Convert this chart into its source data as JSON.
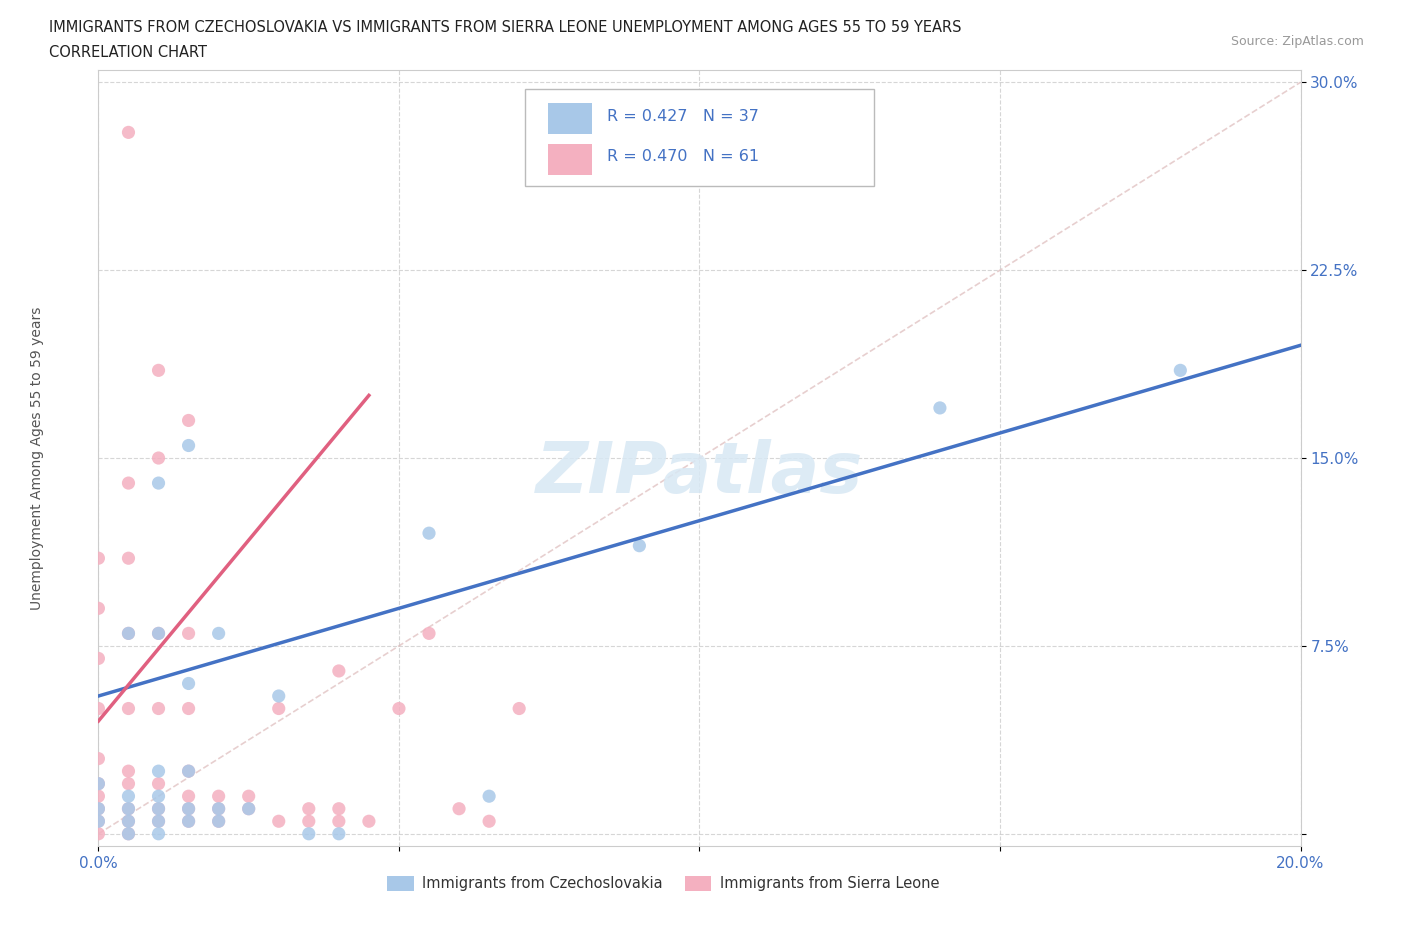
{
  "title_line1": "IMMIGRANTS FROM CZECHOSLOVAKIA VS IMMIGRANTS FROM SIERRA LEONE UNEMPLOYMENT AMONG AGES 55 TO 59 YEARS",
  "title_line2": "CORRELATION CHART",
  "source_text": "Source: ZipAtlas.com",
  "ylabel": "Unemployment Among Ages 55 to 59 years",
  "xlim": [
    0.0,
    0.2
  ],
  "ylim": [
    -0.005,
    0.305
  ],
  "xticks": [
    0.0,
    0.05,
    0.1,
    0.15,
    0.2
  ],
  "yticks": [
    0.0,
    0.075,
    0.15,
    0.225,
    0.3
  ],
  "xtick_labels": [
    "0.0%",
    "",
    "",
    "",
    "20.0%"
  ],
  "ytick_labels": [
    "",
    "7.5%",
    "15.0%",
    "22.5%",
    "30.0%"
  ],
  "legend1_label": "Immigrants from Czechoslovakia",
  "legend2_label": "Immigrants from Sierra Leone",
  "r1": 0.427,
  "n1": 37,
  "r2": 0.47,
  "n2": 61,
  "color1": "#a8c8e8",
  "color2": "#f4b0c0",
  "line1_color": "#4472c4",
  "line2_color": "#e06080",
  "scatter1_x": [
    0.0,
    0.0,
    0.0,
    0.005,
    0.005,
    0.005,
    0.005,
    0.005,
    0.01,
    0.01,
    0.01,
    0.01,
    0.01,
    0.01,
    0.01,
    0.015,
    0.015,
    0.015,
    0.015,
    0.015,
    0.02,
    0.02,
    0.02,
    0.025,
    0.03,
    0.035,
    0.04,
    0.055,
    0.065,
    0.09,
    0.14,
    0.18
  ],
  "scatter1_y": [
    0.005,
    0.01,
    0.02,
    0.0,
    0.005,
    0.01,
    0.015,
    0.08,
    0.0,
    0.005,
    0.01,
    0.015,
    0.025,
    0.08,
    0.14,
    0.005,
    0.01,
    0.025,
    0.06,
    0.155,
    0.005,
    0.01,
    0.08,
    0.01,
    0.055,
    0.0,
    0.0,
    0.12,
    0.015,
    0.115,
    0.17,
    0.185
  ],
  "scatter2_x": [
    0.0,
    0.0,
    0.0,
    0.0,
    0.0,
    0.0,
    0.0,
    0.0,
    0.0,
    0.0,
    0.005,
    0.005,
    0.005,
    0.005,
    0.005,
    0.005,
    0.005,
    0.005,
    0.005,
    0.005,
    0.01,
    0.01,
    0.01,
    0.01,
    0.01,
    0.01,
    0.01,
    0.015,
    0.015,
    0.015,
    0.015,
    0.015,
    0.015,
    0.015,
    0.02,
    0.02,
    0.02,
    0.025,
    0.025,
    0.03,
    0.03,
    0.035,
    0.035,
    0.04,
    0.04,
    0.04,
    0.045,
    0.05,
    0.055,
    0.06,
    0.065,
    0.07
  ],
  "scatter2_y": [
    0.0,
    0.005,
    0.01,
    0.015,
    0.02,
    0.03,
    0.05,
    0.07,
    0.09,
    0.11,
    0.0,
    0.005,
    0.01,
    0.02,
    0.025,
    0.05,
    0.08,
    0.11,
    0.14,
    0.28,
    0.005,
    0.01,
    0.02,
    0.05,
    0.08,
    0.15,
    0.185,
    0.005,
    0.01,
    0.015,
    0.025,
    0.05,
    0.08,
    0.165,
    0.005,
    0.01,
    0.015,
    0.01,
    0.015,
    0.005,
    0.05,
    0.005,
    0.01,
    0.005,
    0.01,
    0.065,
    0.005,
    0.05,
    0.08,
    0.01,
    0.005,
    0.05
  ],
  "line1_x0": 0.0,
  "line1_x1": 0.2,
  "line1_y0": 0.055,
  "line1_y1": 0.195,
  "line2_x0": 0.0,
  "line2_x1": 0.045,
  "line2_y0": 0.045,
  "line2_y1": 0.175,
  "diag_color": "#ddbbbb",
  "watermark": "ZIPatlas",
  "watermark_color": "#d8e8f4",
  "background_color": "#ffffff",
  "grid_color": "#cccccc"
}
